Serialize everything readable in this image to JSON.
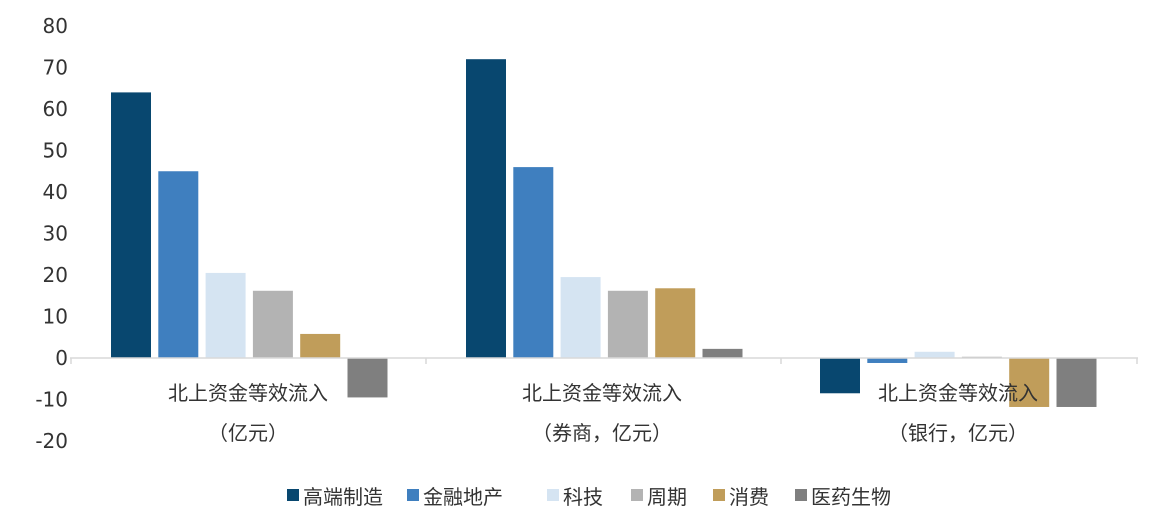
{
  "chart_data": {
    "type": "bar",
    "categories": [
      [
        "北上资金等效流入",
        "（亿元）"
      ],
      [
        "北上资金等效流入",
        "（券商，亿元）"
      ],
      [
        "北上资金等效流入",
        "（银行，亿元）"
      ]
    ],
    "series": [
      {
        "name": "高端制造",
        "color": "#08476F",
        "values": [
          64,
          72,
          -8.5
        ]
      },
      {
        "name": "金融地产",
        "color": "#3F7FBF",
        "values": [
          45,
          46,
          -1.2
        ]
      },
      {
        "name": "科技",
        "color": "#D5E4F2",
        "values": [
          20.5,
          19.5,
          1.5
        ]
      },
      {
        "name": "周期",
        "color": "#B3B3B3",
        "values": [
          16.2,
          16.2,
          0.3
        ]
      },
      {
        "name": "消费",
        "color": "#C09D5A",
        "values": [
          5.8,
          16.8,
          -11.8
        ]
      },
      {
        "name": "医药生物",
        "color": "#7F7F7F",
        "values": [
          -9.5,
          2.2,
          -11.8
        ]
      }
    ],
    "ylim": [
      -20,
      80
    ],
    "yticks": [
      80,
      70,
      60,
      50,
      40,
      30,
      20,
      10,
      0,
      -10,
      -20
    ],
    "title": "",
    "xlabel": "",
    "ylabel": "",
    "grid": false,
    "legend_position": "bottom"
  }
}
